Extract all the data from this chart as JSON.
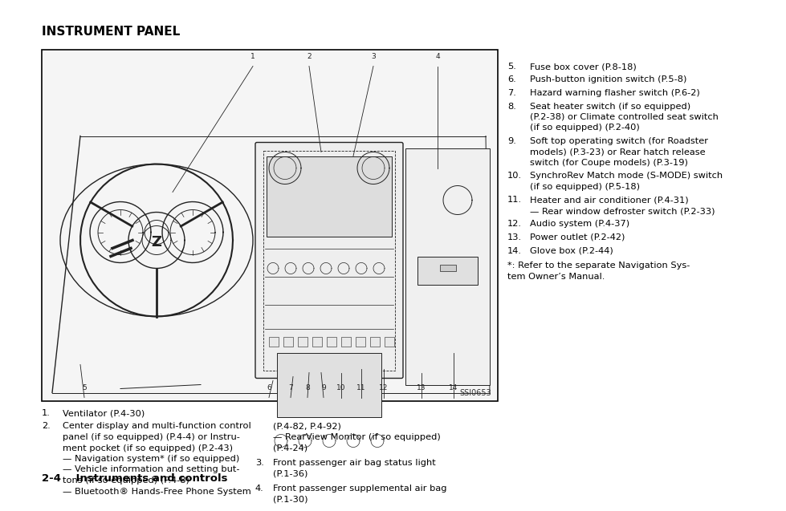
{
  "bg_color": "#ffffff",
  "title": "INSTRUMENT PANEL",
  "title_fontsize": 11.0,
  "ssi_label": "SSI0653",
  "text_color": "#000000",
  "font_size_body": 8.2,
  "font_size_footer_label": 9.5,
  "left_col_items": [
    {
      "num": "1.",
      "text": "Ventilator (P.4-30)"
    },
    {
      "num": "2.",
      "text_parts": [
        {
          "text": "Center display and multi-function control",
          "indent": false
        },
        {
          "text": "panel (if so equipped) (P.4-4) or Instru-",
          "indent": false
        },
        {
          "text": "ment pocket (if so equipped) (P.2-43)",
          "indent": false
        },
        {
          "text": "— Navigation system* (if so equipped)",
          "indent": true
        },
        {
          "text": "— Vehicle information and setting but-",
          "indent": true
        },
        {
          "text": "tons (if so equipped) (P.4-8)",
          "indent": true
        },
        {
          "text": "— Bluetooth® Hands-Free Phone System",
          "indent": true
        }
      ]
    },
    {
      "num": "",
      "text_parts": [
        {
          "text": "(P.4-82, P.4-92)",
          "indent": false
        },
        {
          "text": "— RearView Monitor (if so equipped)",
          "indent": true
        },
        {
          "text": "(P.4-24)",
          "indent": true
        }
      ]
    },
    {
      "num": "3.",
      "text_parts": [
        {
          "text": "Front passenger air bag status light",
          "indent": false
        },
        {
          "text": "(P.1-36)",
          "indent": false
        }
      ]
    },
    {
      "num": "4.",
      "text_parts": [
        {
          "text": "Front passenger supplemental air bag",
          "indent": false
        },
        {
          "text": "(P.1-30)",
          "indent": false
        }
      ]
    }
  ],
  "right_col_items": [
    {
      "num": "5.",
      "lines": [
        "Fuse box cover (P.8-18)"
      ]
    },
    {
      "num": "6.",
      "lines": [
        "Push-button ignition switch (P.5-8)"
      ]
    },
    {
      "num": "7.",
      "lines": [
        "Hazard warning flasher switch (P.6-2)"
      ]
    },
    {
      "num": "8.",
      "lines": [
        "Seat heater switch (if so equipped)",
        "(P.2-38) or Climate controlled seat switch",
        "(if so equipped) (P.2-40)"
      ]
    },
    {
      "num": "9.",
      "lines": [
        "Soft top operating switch (for Roadster",
        "models) (P.3-23) or Rear hatch release",
        "switch (for Coupe models) (P.3-19)"
      ]
    },
    {
      "num": "10.",
      "lines": [
        "SynchroRev Match mode (S-MODE) switch",
        "(if so equipped) (P.5-18)"
      ]
    },
    {
      "num": "11.",
      "lines": [
        "Heater and air conditioner (P.4-31)",
        "— Rear window defroster switch (P.2-33)"
      ]
    },
    {
      "num": "12.",
      "lines": [
        "Audio system (P.4-37)"
      ]
    },
    {
      "num": "13.",
      "lines": [
        "Power outlet (P.2-42)"
      ]
    },
    {
      "num": "14.",
      "lines": [
        "Glove box (P.2-44)"
      ]
    }
  ],
  "footer_note_lines": [
    "*: Refer to the separate Navigation Sys-",
    "tem Owner’s Manual."
  ],
  "footer_label": "2-4    Instruments and controls"
}
